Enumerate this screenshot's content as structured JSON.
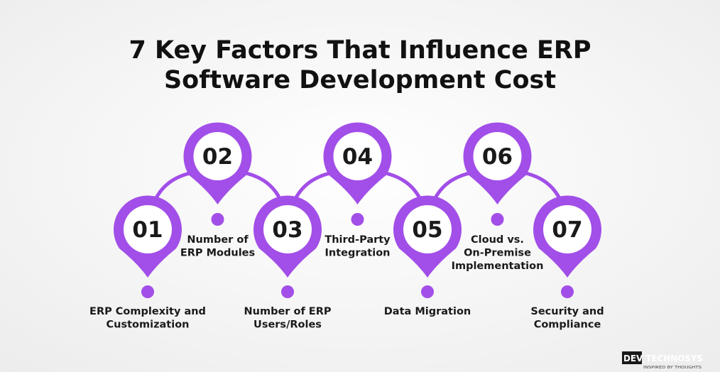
{
  "header": {
    "title": [
      "7 Key Factors That Influence ERP",
      "Software Development Cost"
    ]
  },
  "items": [
    {
      "number": "01",
      "label": [
        "ERP Complexity and",
        "Customization"
      ]
    },
    {
      "number": "02",
      "label": [
        "Number of",
        "ERP Modules"
      ]
    },
    {
      "number": "03",
      "label": [
        "Number of ERP",
        "Users/Roles"
      ]
    },
    {
      "number": "04",
      "label": [
        "Third-Party",
        "Integration"
      ]
    },
    {
      "number": "05",
      "label": [
        "Data Migration"
      ]
    },
    {
      "number": "06",
      "label": [
        "Cloud vs.",
        "On-Premise",
        "Implementation"
      ]
    },
    {
      "number": "07",
      "label": [
        "Security and",
        "Compliance"
      ]
    }
  ],
  "logo": {
    "brand": "DEV TECHNOSYS",
    "tagline": "INSPIRED BY THOUGHTS"
  }
}
